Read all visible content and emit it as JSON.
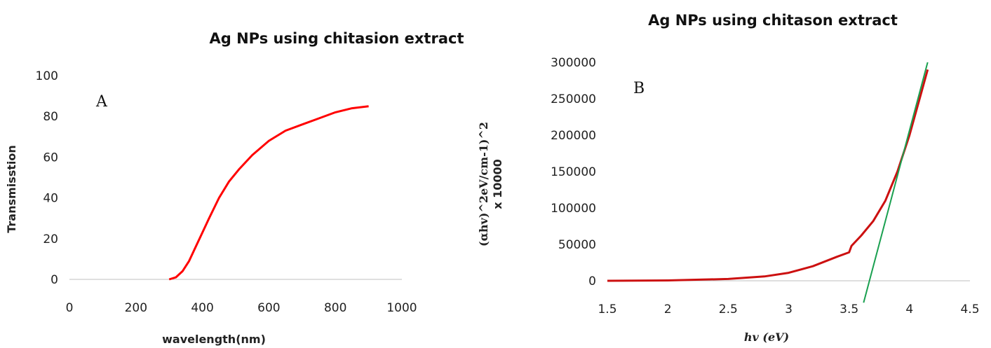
{
  "chart_data": [
    {
      "type": "line",
      "title": "Ag NPs using chitasion extract",
      "panel_label": "A",
      "xlabel": "wavelength(nm)",
      "ylabel": "Transmisstion",
      "xlim": [
        0,
        1000
      ],
      "ylim": [
        0,
        100
      ],
      "xticks": [
        0,
        200,
        400,
        600,
        800,
        1000
      ],
      "yticks": [
        0,
        20,
        40,
        60,
        80,
        100
      ],
      "grid": false,
      "colors": {
        "series": "#ff0000",
        "axis": "#bfbfbf"
      },
      "series": [
        {
          "x": [
            300,
            320,
            340,
            360,
            380,
            400,
            420,
            450,
            480,
            510,
            550,
            600,
            650,
            700,
            750,
            800,
            850,
            900
          ],
          "y": [
            0,
            1,
            4,
            9,
            16,
            23,
            30,
            40,
            48,
            54,
            61,
            68,
            73,
            76,
            79,
            82,
            84,
            85
          ]
        }
      ]
    },
    {
      "type": "line",
      "title": "Ag NPs using chitason extract",
      "panel_label": "B",
      "xlabel": "hv (eV)",
      "ylabel": "(αhv)^2eV/cm-1)^2",
      "ylabel_sub": "x 10000",
      "xlim": [
        1.5,
        4.5
      ],
      "ylim": [
        0,
        300000
      ],
      "xticks": [
        "1.5",
        "2",
        "2.5",
        "3",
        "3.5",
        "4",
        "4.5"
      ],
      "yticks": [
        "0",
        "50000",
        "100000",
        "150000",
        "200000",
        "250000",
        "300000"
      ],
      "grid": false,
      "colors": {
        "series": "#cc1010",
        "fit": "#1aa050",
        "axis": "#bfbfbf"
      },
      "series": [
        {
          "x": [
            1.5,
            2.0,
            2.5,
            2.8,
            3.0,
            3.2,
            3.4,
            3.5,
            3.52,
            3.6,
            3.7,
            3.8,
            3.9,
            4.0,
            4.1,
            4.15
          ],
          "y": [
            0,
            500,
            2500,
            6000,
            11000,
            20000,
            33000,
            39000,
            48000,
            62000,
            82000,
            110000,
            150000,
            200000,
            260000,
            290000
          ]
        }
      ],
      "fit_line": {
        "x": [
          3.62,
          4.15
        ],
        "y": [
          -30000,
          300000
        ]
      }
    }
  ]
}
